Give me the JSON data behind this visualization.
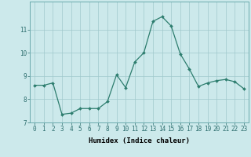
{
  "x": [
    0,
    1,
    2,
    3,
    4,
    5,
    6,
    7,
    8,
    9,
    10,
    11,
    12,
    13,
    14,
    15,
    16,
    17,
    18,
    19,
    20,
    21,
    22,
    23
  ],
  "y": [
    8.6,
    8.6,
    8.7,
    7.35,
    7.4,
    7.6,
    7.6,
    7.6,
    7.9,
    9.05,
    8.5,
    9.6,
    10.0,
    11.35,
    11.55,
    11.15,
    9.95,
    9.3,
    8.55,
    8.7,
    8.8,
    8.85,
    8.75,
    8.45
  ],
  "line_color": "#2d7d6e",
  "marker": "D",
  "marker_size": 2.0,
  "bg_color": "#cce9eb",
  "grid_color": "#a0c8cc",
  "xlabel": "Humidex (Indice chaleur)",
  "ylim": [
    7.0,
    12.2
  ],
  "xlim": [
    -0.5,
    23.5
  ],
  "yticks": [
    7,
    8,
    9,
    10,
    11
  ],
  "xticks": [
    0,
    1,
    2,
    3,
    4,
    5,
    6,
    7,
    8,
    9,
    10,
    11,
    12,
    13,
    14,
    15,
    16,
    17,
    18,
    19,
    20,
    21,
    22,
    23
  ],
  "xlabel_fontsize": 6.5,
  "tick_fontsize": 5.5,
  "linewidth": 0.9
}
